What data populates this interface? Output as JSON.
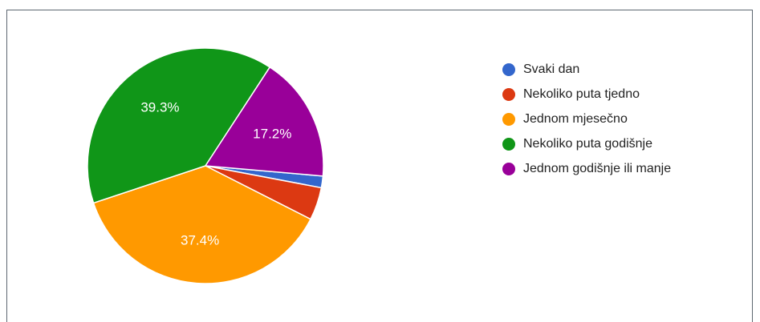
{
  "chart_data": {
    "type": "pie",
    "title": "",
    "slices": [
      {
        "label": "Svaki dan",
        "value": 1.6,
        "color": "#3366cc"
      },
      {
        "label": "Nekoliko puta tjedno",
        "value": 4.5,
        "color": "#dc3912"
      },
      {
        "label": "Jednom mjesečno",
        "value": 37.4,
        "color": "#ff9900"
      },
      {
        "label": "Nekoliko puta godišnje",
        "value": 39.3,
        "color": "#109618"
      },
      {
        "label": "Jednom godišnje ili manje",
        "value": 17.2,
        "color": "#990099"
      }
    ],
    "data_labels": [
      "",
      "",
      "37.4%",
      "39.3%",
      "17.2%"
    ],
    "legend_position": "right"
  }
}
